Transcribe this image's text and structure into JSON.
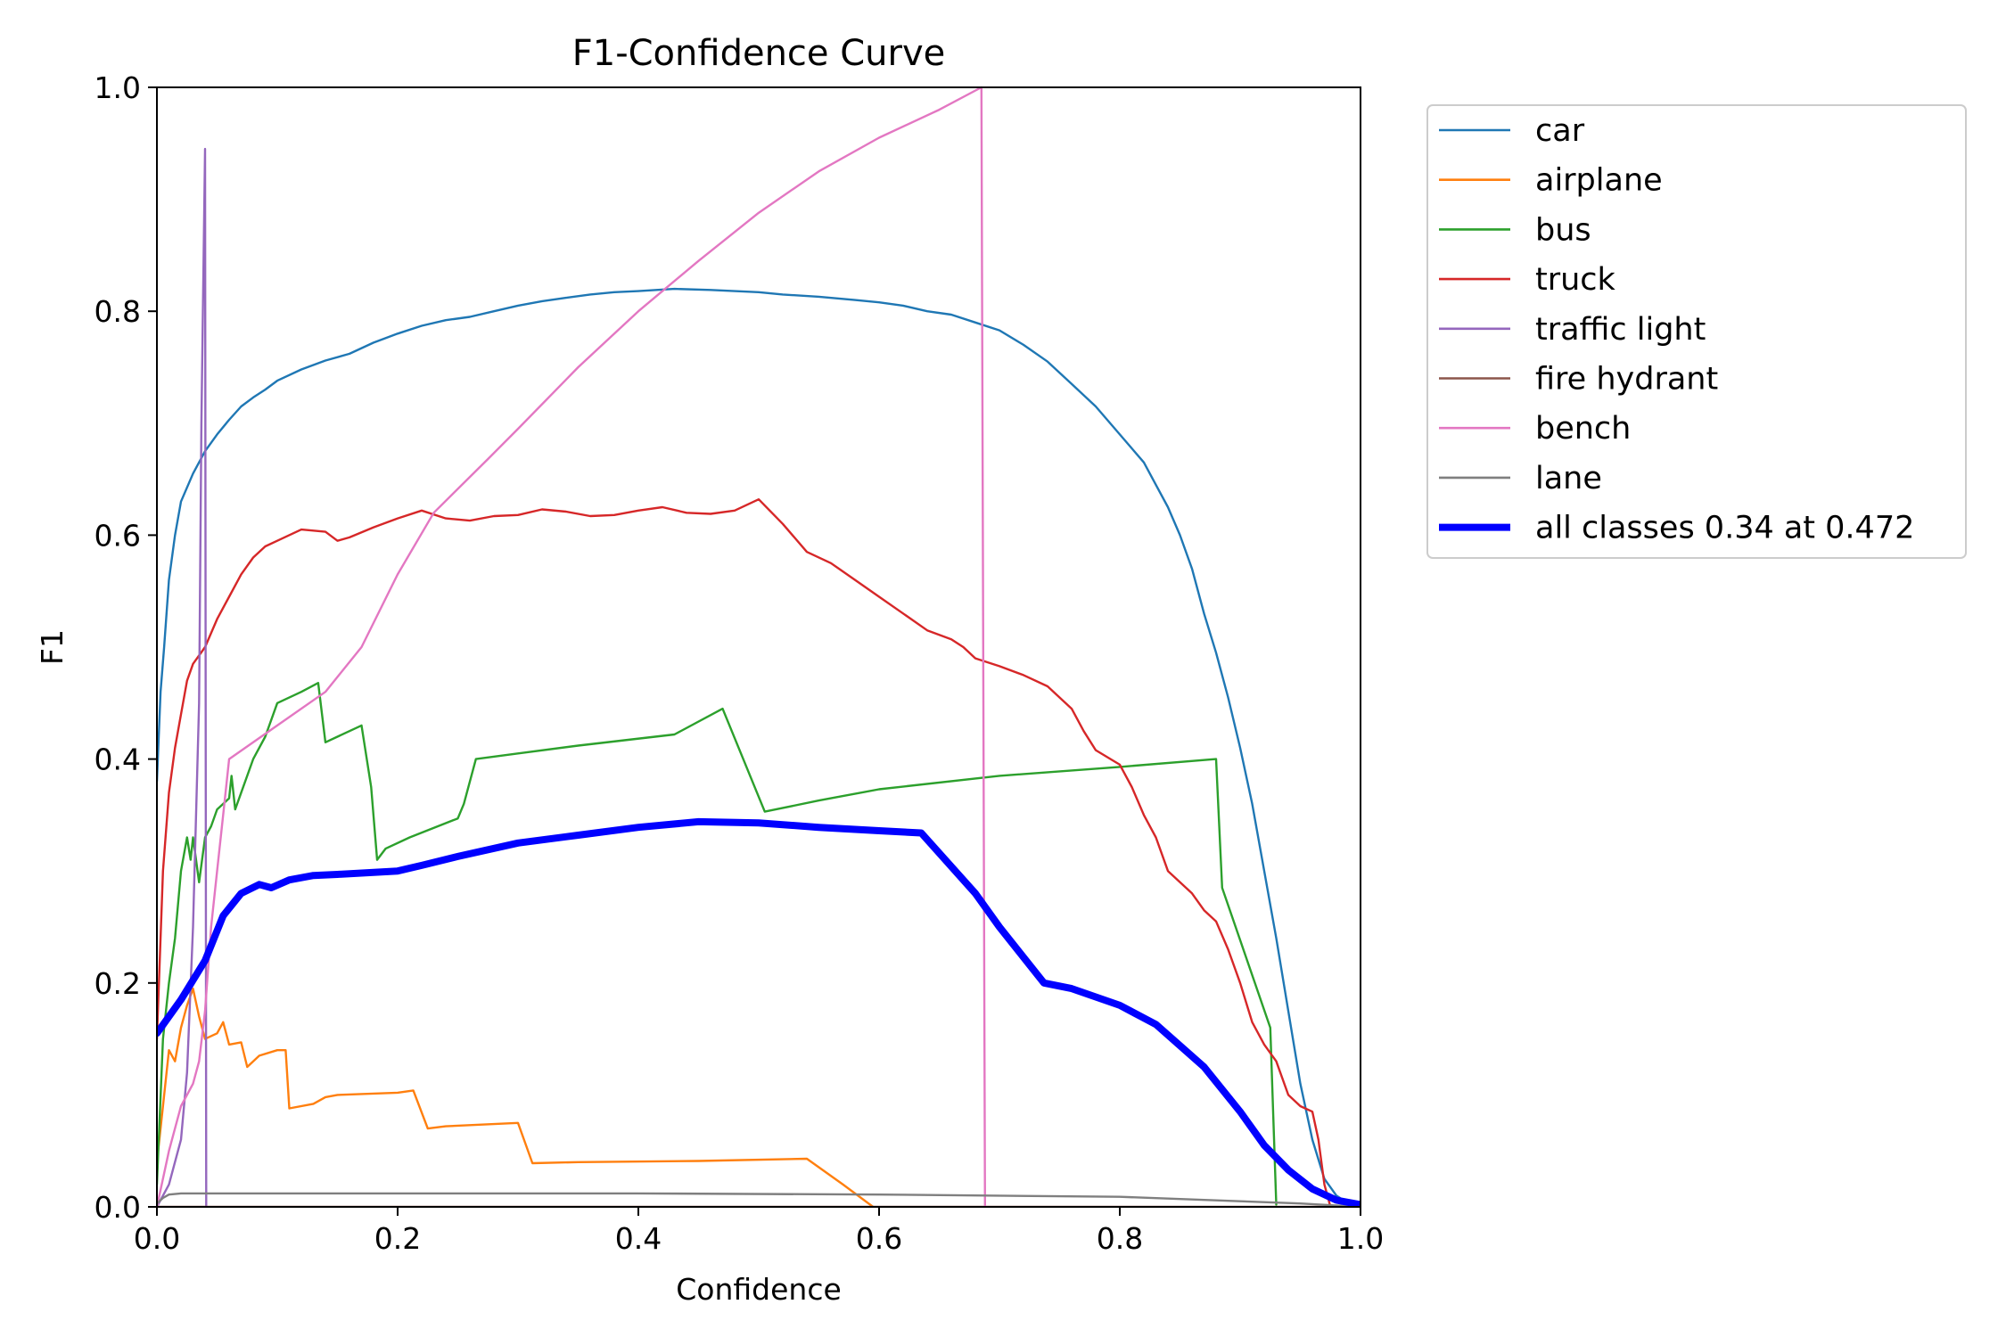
{
  "chart_data": {
    "type": "line",
    "title": "F1-Confidence Curve",
    "xlabel": "Confidence",
    "ylabel": "F1",
    "xlim": [
      0,
      1
    ],
    "ylim": [
      0,
      1
    ],
    "xticks": [
      "0.0",
      "0.2",
      "0.4",
      "0.6",
      "0.8",
      "1.0"
    ],
    "yticks": [
      "0.0",
      "0.2",
      "0.4",
      "0.6",
      "0.8",
      "1.0"
    ],
    "grid": false,
    "legend_position": "outside-top-right",
    "series": [
      {
        "name": "car",
        "color": "#1f77b4",
        "points": [
          [
            0.0,
            0.38
          ],
          [
            0.003,
            0.46
          ],
          [
            0.006,
            0.5
          ],
          [
            0.01,
            0.56
          ],
          [
            0.015,
            0.6
          ],
          [
            0.02,
            0.63
          ],
          [
            0.03,
            0.655
          ],
          [
            0.04,
            0.675
          ],
          [
            0.05,
            0.69
          ],
          [
            0.06,
            0.703
          ],
          [
            0.07,
            0.715
          ],
          [
            0.08,
            0.723
          ],
          [
            0.09,
            0.73
          ],
          [
            0.1,
            0.738
          ],
          [
            0.12,
            0.748
          ],
          [
            0.14,
            0.756
          ],
          [
            0.16,
            0.762
          ],
          [
            0.18,
            0.772
          ],
          [
            0.2,
            0.78
          ],
          [
            0.22,
            0.787
          ],
          [
            0.24,
            0.792
          ],
          [
            0.26,
            0.795
          ],
          [
            0.28,
            0.8
          ],
          [
            0.3,
            0.805
          ],
          [
            0.32,
            0.809
          ],
          [
            0.34,
            0.812
          ],
          [
            0.36,
            0.815
          ],
          [
            0.38,
            0.817
          ],
          [
            0.4,
            0.818
          ],
          [
            0.43,
            0.82
          ],
          [
            0.46,
            0.819
          ],
          [
            0.5,
            0.817
          ],
          [
            0.52,
            0.815
          ],
          [
            0.55,
            0.813
          ],
          [
            0.58,
            0.81
          ],
          [
            0.6,
            0.808
          ],
          [
            0.62,
            0.805
          ],
          [
            0.64,
            0.8
          ],
          [
            0.66,
            0.797
          ],
          [
            0.68,
            0.79
          ],
          [
            0.7,
            0.783
          ],
          [
            0.72,
            0.77
          ],
          [
            0.74,
            0.755
          ],
          [
            0.76,
            0.735
          ],
          [
            0.78,
            0.715
          ],
          [
            0.8,
            0.69
          ],
          [
            0.82,
            0.665
          ],
          [
            0.83,
            0.645
          ],
          [
            0.84,
            0.625
          ],
          [
            0.85,
            0.6
          ],
          [
            0.86,
            0.57
          ],
          [
            0.87,
            0.53
          ],
          [
            0.88,
            0.495
          ],
          [
            0.89,
            0.455
          ],
          [
            0.9,
            0.41
          ],
          [
            0.91,
            0.36
          ],
          [
            0.92,
            0.3
          ],
          [
            0.93,
            0.24
          ],
          [
            0.94,
            0.175
          ],
          [
            0.95,
            0.11
          ],
          [
            0.96,
            0.06
          ],
          [
            0.97,
            0.025
          ],
          [
            0.98,
            0.01
          ],
          [
            0.99,
            0.003
          ],
          [
            1.0,
            0.0
          ]
        ]
      },
      {
        "name": "airplane",
        "color": "#ff7f0e",
        "points": [
          [
            0.0,
            0.04
          ],
          [
            0.005,
            0.09
          ],
          [
            0.01,
            0.14
          ],
          [
            0.015,
            0.13
          ],
          [
            0.02,
            0.16
          ],
          [
            0.025,
            0.18
          ],
          [
            0.03,
            0.195
          ],
          [
            0.035,
            0.17
          ],
          [
            0.04,
            0.15
          ],
          [
            0.05,
            0.155
          ],
          [
            0.055,
            0.165
          ],
          [
            0.06,
            0.145
          ],
          [
            0.07,
            0.147
          ],
          [
            0.075,
            0.125
          ],
          [
            0.08,
            0.13
          ],
          [
            0.085,
            0.135
          ],
          [
            0.1,
            0.14
          ],
          [
            0.107,
            0.14
          ],
          [
            0.11,
            0.088
          ],
          [
            0.13,
            0.092
          ],
          [
            0.14,
            0.098
          ],
          [
            0.15,
            0.1
          ],
          [
            0.2,
            0.102
          ],
          [
            0.213,
            0.104
          ],
          [
            0.225,
            0.07
          ],
          [
            0.24,
            0.072
          ],
          [
            0.28,
            0.074
          ],
          [
            0.3,
            0.075
          ],
          [
            0.312,
            0.039
          ],
          [
            0.35,
            0.04
          ],
          [
            0.45,
            0.041
          ],
          [
            0.54,
            0.043
          ],
          [
            0.57,
            0.02
          ],
          [
            0.595,
            0.0
          ]
        ]
      },
      {
        "name": "bus",
        "color": "#2ca02c",
        "points": [
          [
            0.0,
            0.02
          ],
          [
            0.005,
            0.15
          ],
          [
            0.01,
            0.2
          ],
          [
            0.015,
            0.24
          ],
          [
            0.02,
            0.3
          ],
          [
            0.025,
            0.33
          ],
          [
            0.028,
            0.31
          ],
          [
            0.03,
            0.33
          ],
          [
            0.035,
            0.29
          ],
          [
            0.04,
            0.33
          ],
          [
            0.045,
            0.34
          ],
          [
            0.05,
            0.355
          ],
          [
            0.06,
            0.365
          ],
          [
            0.062,
            0.385
          ],
          [
            0.065,
            0.355
          ],
          [
            0.07,
            0.37
          ],
          [
            0.08,
            0.4
          ],
          [
            0.09,
            0.42
          ],
          [
            0.1,
            0.45
          ],
          [
            0.12,
            0.46
          ],
          [
            0.134,
            0.468
          ],
          [
            0.14,
            0.415
          ],
          [
            0.17,
            0.43
          ],
          [
            0.178,
            0.375
          ],
          [
            0.183,
            0.31
          ],
          [
            0.19,
            0.32
          ],
          [
            0.21,
            0.33
          ],
          [
            0.25,
            0.347
          ],
          [
            0.255,
            0.36
          ],
          [
            0.265,
            0.4
          ],
          [
            0.3,
            0.405
          ],
          [
            0.35,
            0.412
          ],
          [
            0.43,
            0.422
          ],
          [
            0.47,
            0.445
          ],
          [
            0.505,
            0.353
          ],
          [
            0.55,
            0.363
          ],
          [
            0.6,
            0.373
          ],
          [
            0.7,
            0.385
          ],
          [
            0.8,
            0.393
          ],
          [
            0.88,
            0.4
          ],
          [
            0.885,
            0.285
          ],
          [
            0.925,
            0.16
          ],
          [
            0.93,
            0.002
          ]
        ]
      },
      {
        "name": "truck",
        "color": "#d62728",
        "points": [
          [
            0.0,
            0.15
          ],
          [
            0.005,
            0.3
          ],
          [
            0.01,
            0.37
          ],
          [
            0.015,
            0.41
          ],
          [
            0.02,
            0.44
          ],
          [
            0.025,
            0.47
          ],
          [
            0.03,
            0.485
          ],
          [
            0.04,
            0.5
          ],
          [
            0.05,
            0.525
          ],
          [
            0.06,
            0.545
          ],
          [
            0.07,
            0.565
          ],
          [
            0.08,
            0.58
          ],
          [
            0.09,
            0.59
          ],
          [
            0.1,
            0.595
          ],
          [
            0.12,
            0.605
          ],
          [
            0.14,
            0.603
          ],
          [
            0.15,
            0.595
          ],
          [
            0.16,
            0.598
          ],
          [
            0.18,
            0.607
          ],
          [
            0.2,
            0.615
          ],
          [
            0.22,
            0.622
          ],
          [
            0.24,
            0.615
          ],
          [
            0.26,
            0.613
          ],
          [
            0.28,
            0.617
          ],
          [
            0.3,
            0.618
          ],
          [
            0.32,
            0.623
          ],
          [
            0.34,
            0.621
          ],
          [
            0.36,
            0.617
          ],
          [
            0.38,
            0.618
          ],
          [
            0.4,
            0.622
          ],
          [
            0.42,
            0.625
          ],
          [
            0.44,
            0.62
          ],
          [
            0.46,
            0.619
          ],
          [
            0.48,
            0.622
          ],
          [
            0.5,
            0.632
          ],
          [
            0.52,
            0.61
          ],
          [
            0.54,
            0.585
          ],
          [
            0.56,
            0.575
          ],
          [
            0.58,
            0.56
          ],
          [
            0.6,
            0.545
          ],
          [
            0.62,
            0.53
          ],
          [
            0.64,
            0.515
          ],
          [
            0.66,
            0.507
          ],
          [
            0.67,
            0.5
          ],
          [
            0.68,
            0.49
          ],
          [
            0.7,
            0.483
          ],
          [
            0.72,
            0.475
          ],
          [
            0.74,
            0.465
          ],
          [
            0.76,
            0.445
          ],
          [
            0.77,
            0.425
          ],
          [
            0.78,
            0.408
          ],
          [
            0.8,
            0.395
          ],
          [
            0.81,
            0.375
          ],
          [
            0.82,
            0.35
          ],
          [
            0.83,
            0.33
          ],
          [
            0.84,
            0.3
          ],
          [
            0.85,
            0.29
          ],
          [
            0.86,
            0.28
          ],
          [
            0.87,
            0.265
          ],
          [
            0.88,
            0.255
          ],
          [
            0.89,
            0.23
          ],
          [
            0.9,
            0.2
          ],
          [
            0.91,
            0.165
          ],
          [
            0.92,
            0.145
          ],
          [
            0.93,
            0.13
          ],
          [
            0.94,
            0.1
          ],
          [
            0.95,
            0.09
          ],
          [
            0.96,
            0.085
          ],
          [
            0.965,
            0.06
          ],
          [
            0.97,
            0.02
          ],
          [
            0.975,
            0.0
          ]
        ]
      },
      {
        "name": "traffic light",
        "color": "#9467bd",
        "points": [
          [
            0.0,
            0.0
          ],
          [
            0.01,
            0.02
          ],
          [
            0.02,
            0.06
          ],
          [
            0.025,
            0.12
          ],
          [
            0.03,
            0.25
          ],
          [
            0.035,
            0.45
          ],
          [
            0.037,
            0.7
          ],
          [
            0.04,
            0.945
          ],
          [
            0.041,
            0.0
          ]
        ]
      },
      {
        "name": "fire hydrant",
        "color": "#8c564b",
        "points": [
          [
            0.0,
            0.0
          ],
          [
            1.0,
            0.0
          ]
        ]
      },
      {
        "name": "bench",
        "color": "#e377c2",
        "points": [
          [
            0.0,
            0.0
          ],
          [
            0.01,
            0.05
          ],
          [
            0.02,
            0.09
          ],
          [
            0.03,
            0.11
          ],
          [
            0.035,
            0.13
          ],
          [
            0.04,
            0.175
          ],
          [
            0.045,
            0.25
          ],
          [
            0.05,
            0.3
          ],
          [
            0.055,
            0.35
          ],
          [
            0.06,
            0.4
          ],
          [
            0.1,
            0.43
          ],
          [
            0.14,
            0.46
          ],
          [
            0.17,
            0.5
          ],
          [
            0.2,
            0.565
          ],
          [
            0.23,
            0.62
          ],
          [
            0.275,
            0.668
          ],
          [
            0.3,
            0.695
          ],
          [
            0.35,
            0.75
          ],
          [
            0.4,
            0.8
          ],
          [
            0.45,
            0.845
          ],
          [
            0.5,
            0.888
          ],
          [
            0.55,
            0.925
          ],
          [
            0.6,
            0.955
          ],
          [
            0.65,
            0.98
          ],
          [
            0.685,
            1.0
          ],
          [
            0.688,
            0.0
          ]
        ]
      },
      {
        "name": "lane",
        "color": "#7f7f7f",
        "points": [
          [
            0.0,
            0.003
          ],
          [
            0.005,
            0.008
          ],
          [
            0.01,
            0.011
          ],
          [
            0.02,
            0.012
          ],
          [
            0.2,
            0.012
          ],
          [
            0.4,
            0.012
          ],
          [
            0.6,
            0.011
          ],
          [
            0.8,
            0.009
          ],
          [
            0.9,
            0.005
          ],
          [
            0.95,
            0.003
          ],
          [
            1.0,
            0.0
          ]
        ]
      }
    ],
    "aggregate": {
      "name": "all classes 0.34 at 0.472",
      "color": "#0000ff",
      "points": [
        [
          0.0,
          0.155
        ],
        [
          0.02,
          0.185
        ],
        [
          0.04,
          0.22
        ],
        [
          0.055,
          0.26
        ],
        [
          0.07,
          0.28
        ],
        [
          0.085,
          0.288
        ],
        [
          0.095,
          0.285
        ],
        [
          0.11,
          0.292
        ],
        [
          0.13,
          0.296
        ],
        [
          0.15,
          0.297
        ],
        [
          0.2,
          0.3
        ],
        [
          0.22,
          0.305
        ],
        [
          0.25,
          0.313
        ],
        [
          0.3,
          0.325
        ],
        [
          0.35,
          0.332
        ],
        [
          0.4,
          0.339
        ],
        [
          0.45,
          0.344
        ],
        [
          0.5,
          0.343
        ],
        [
          0.55,
          0.339
        ],
        [
          0.6,
          0.336
        ],
        [
          0.635,
          0.334
        ],
        [
          0.68,
          0.28
        ],
        [
          0.7,
          0.25
        ],
        [
          0.737,
          0.2
        ],
        [
          0.76,
          0.195
        ],
        [
          0.8,
          0.18
        ],
        [
          0.83,
          0.163
        ],
        [
          0.87,
          0.125
        ],
        [
          0.9,
          0.085
        ],
        [
          0.92,
          0.055
        ],
        [
          0.94,
          0.033
        ],
        [
          0.96,
          0.016
        ],
        [
          0.98,
          0.006
        ],
        [
          1.0,
          0.002
        ]
      ]
    }
  }
}
